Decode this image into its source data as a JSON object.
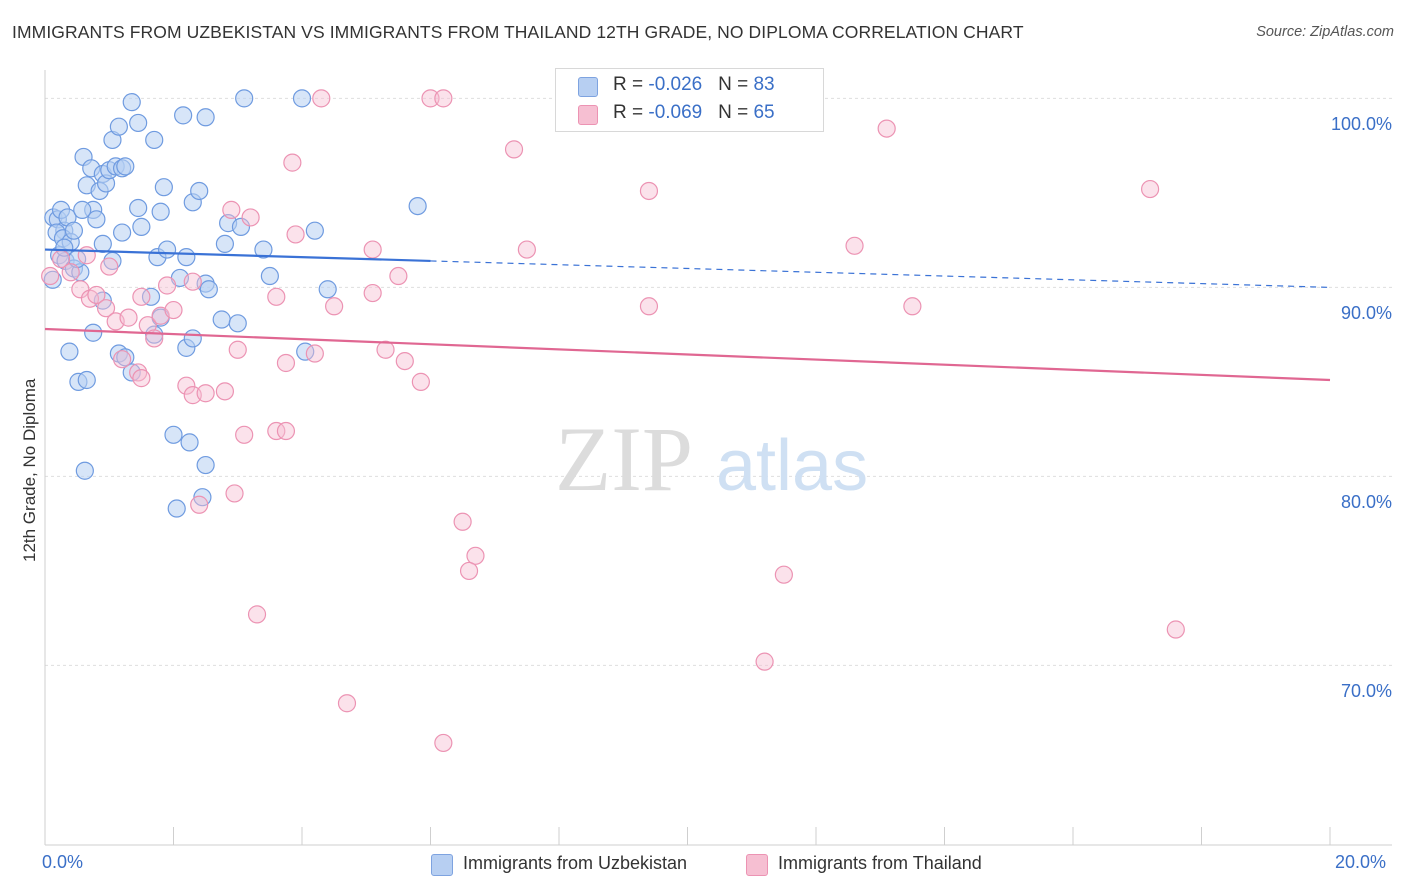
{
  "title": "IMMIGRANTS FROM UZBEKISTAN VS IMMIGRANTS FROM THAILAND 12TH GRADE, NO DIPLOMA CORRELATION CHART",
  "source": "Source: ZipAtlas.com",
  "watermark": {
    "zip": "ZIP",
    "atlas": "atlas"
  },
  "colors": {
    "blue": "#3a72d6",
    "blue_fill": "#b7cff2",
    "pink": "#e06792",
    "pink_fill": "#f6bfd2",
    "axis_text": "#3a6fc7"
  },
  "legend": {
    "rows": [
      {
        "r_label": "R = ",
        "r_value": "-0.026",
        "n_label": "N = ",
        "n_value": "83"
      },
      {
        "r_label": "R = ",
        "r_value": "-0.069",
        "n_label": "N = ",
        "n_value": "65"
      }
    ]
  },
  "bottom_legend": [
    "Immigrants from Uzbekistan",
    "Immigrants from Thailand"
  ],
  "chart_data": {
    "type": "scatter",
    "title": "IMMIGRANTS FROM UZBEKISTAN VS IMMIGRANTS FROM THAILAND 12TH GRADE, NO DIPLOMA CORRELATION CHART",
    "xlabel": "",
    "ylabel": "12th Grade, No Diploma",
    "xlim": [
      0,
      20
    ],
    "ylim": [
      60.5,
      101.5
    ],
    "x_tick_labels": {
      "left": "0.0%",
      "right": "20.0%"
    },
    "y_ticks": [
      {
        "value": 100,
        "label": "100.0%"
      },
      {
        "value": 90,
        "label": "90.0%"
      },
      {
        "value": 80,
        "label": "80.0%"
      },
      {
        "value": 70,
        "label": "70.0%"
      }
    ],
    "series": [
      {
        "name": "Immigrants from Uzbekistan",
        "color": "blue",
        "R": -0.026,
        "N": 83,
        "trend": {
          "x0": 0,
          "y0": 92.0,
          "x_solid_end": 6.0,
          "x1": 20,
          "y1": 90.0
        },
        "points": [
          [
            0.13,
            93.7
          ],
          [
            0.2,
            93.6
          ],
          [
            0.25,
            94.1
          ],
          [
            0.3,
            93.0
          ],
          [
            0.35,
            93.7
          ],
          [
            0.18,
            92.9
          ],
          [
            0.28,
            92.6
          ],
          [
            0.4,
            92.4
          ],
          [
            0.22,
            91.7
          ],
          [
            0.32,
            91.4
          ],
          [
            0.45,
            91.0
          ],
          [
            0.55,
            90.8
          ],
          [
            0.12,
            90.4
          ],
          [
            0.6,
            96.9
          ],
          [
            0.72,
            96.3
          ],
          [
            0.65,
            95.4
          ],
          [
            0.85,
            95.1
          ],
          [
            0.9,
            96.0
          ],
          [
            0.95,
            95.5
          ],
          [
            0.75,
            94.1
          ],
          [
            0.8,
            93.6
          ],
          [
            1.0,
            96.2
          ],
          [
            1.1,
            96.4
          ],
          [
            1.2,
            96.3
          ],
          [
            1.25,
            96.4
          ],
          [
            1.05,
            97.8
          ],
          [
            1.15,
            98.5
          ],
          [
            1.45,
            98.7
          ],
          [
            1.35,
            99.8
          ],
          [
            1.45,
            94.2
          ],
          [
            1.5,
            93.2
          ],
          [
            1.7,
            97.8
          ],
          [
            1.8,
            94.0
          ],
          [
            1.85,
            95.3
          ],
          [
            0.9,
            92.3
          ],
          [
            1.2,
            92.9
          ],
          [
            1.75,
            91.6
          ],
          [
            2.2,
            91.6
          ],
          [
            2.3,
            94.5
          ],
          [
            2.4,
            95.1
          ],
          [
            2.5,
            90.2
          ],
          [
            2.55,
            89.9
          ],
          [
            2.8,
            92.3
          ],
          [
            2.85,
            93.4
          ],
          [
            2.15,
            99.1
          ],
          [
            2.5,
            99.0
          ],
          [
            3.1,
            100.0
          ],
          [
            4.0,
            100.0
          ],
          [
            3.05,
            93.2
          ],
          [
            3.4,
            92.0
          ],
          [
            4.2,
            93.0
          ],
          [
            5.8,
            94.3
          ],
          [
            1.65,
            89.5
          ],
          [
            1.8,
            88.4
          ],
          [
            0.75,
            87.6
          ],
          [
            1.15,
            86.5
          ],
          [
            1.25,
            86.3
          ],
          [
            1.35,
            85.5
          ],
          [
            1.7,
            87.5
          ],
          [
            2.2,
            86.8
          ],
          [
            2.3,
            87.3
          ],
          [
            2.75,
            88.3
          ],
          [
            3.0,
            88.1
          ],
          [
            4.05,
            86.6
          ],
          [
            0.38,
            86.6
          ],
          [
            0.52,
            85.0
          ],
          [
            0.65,
            85.1
          ],
          [
            2.0,
            82.2
          ],
          [
            2.25,
            81.8
          ],
          [
            2.5,
            80.6
          ],
          [
            0.62,
            80.3
          ],
          [
            2.45,
            78.9
          ],
          [
            2.05,
            78.3
          ],
          [
            1.05,
            91.4
          ],
          [
            0.9,
            89.3
          ],
          [
            0.45,
            93.0
          ],
          [
            4.4,
            89.9
          ],
          [
            0.58,
            94.1
          ],
          [
            1.9,
            92.0
          ],
          [
            0.3,
            92.1
          ],
          [
            0.5,
            91.5
          ],
          [
            2.1,
            90.5
          ],
          [
            3.5,
            90.6
          ]
        ]
      },
      {
        "name": "Immigrants from Thailand",
        "color": "pink",
        "R": -0.069,
        "N": 65,
        "trend": {
          "x0": 0,
          "y0": 87.8,
          "x1": 20,
          "y1": 85.1
        },
        "points": [
          [
            0.08,
            90.6
          ],
          [
            0.25,
            91.5
          ],
          [
            0.4,
            90.8
          ],
          [
            0.55,
            89.9
          ],
          [
            0.7,
            89.4
          ],
          [
            0.8,
            89.6
          ],
          [
            0.95,
            88.9
          ],
          [
            1.1,
            88.2
          ],
          [
            1.3,
            88.4
          ],
          [
            1.5,
            89.5
          ],
          [
            1.6,
            88.0
          ],
          [
            1.7,
            87.3
          ],
          [
            1.8,
            88.5
          ],
          [
            1.9,
            90.1
          ],
          [
            2.0,
            88.8
          ],
          [
            2.3,
            90.3
          ],
          [
            2.9,
            94.1
          ],
          [
            3.2,
            93.7
          ],
          [
            3.9,
            92.8
          ],
          [
            3.6,
            89.5
          ],
          [
            4.5,
            89.0
          ],
          [
            5.1,
            89.7
          ],
          [
            5.5,
            90.6
          ],
          [
            4.2,
            86.5
          ],
          [
            5.3,
            86.7
          ],
          [
            5.6,
            86.1
          ],
          [
            5.85,
            85.0
          ],
          [
            3.75,
            86.0
          ],
          [
            3.0,
            86.7
          ],
          [
            1.2,
            86.2
          ],
          [
            1.45,
            85.5
          ],
          [
            1.5,
            85.2
          ],
          [
            2.2,
            84.8
          ],
          [
            2.3,
            84.3
          ],
          [
            2.5,
            84.4
          ],
          [
            2.8,
            84.5
          ],
          [
            3.1,
            82.2
          ],
          [
            3.6,
            82.4
          ],
          [
            3.75,
            82.4
          ],
          [
            2.95,
            79.1
          ],
          [
            2.4,
            78.5
          ],
          [
            6.5,
            77.6
          ],
          [
            6.7,
            75.8
          ],
          [
            6.6,
            75.0
          ],
          [
            3.3,
            72.7
          ],
          [
            4.7,
            68.0
          ],
          [
            6.2,
            65.9
          ],
          [
            3.85,
            96.6
          ],
          [
            4.3,
            100.0
          ],
          [
            6.0,
            100.0
          ],
          [
            6.2,
            100.0
          ],
          [
            7.3,
            97.3
          ],
          [
            9.4,
            95.1
          ],
          [
            7.5,
            92.0
          ],
          [
            12.6,
            92.2
          ],
          [
            13.1,
            98.4
          ],
          [
            17.2,
            95.2
          ],
          [
            9.4,
            89.0
          ],
          [
            13.5,
            89.0
          ],
          [
            11.5,
            74.8
          ],
          [
            11.2,
            70.2
          ],
          [
            17.6,
            71.9
          ],
          [
            5.1,
            92.0
          ],
          [
            0.65,
            91.7
          ],
          [
            1.0,
            91.1
          ]
        ]
      }
    ]
  }
}
